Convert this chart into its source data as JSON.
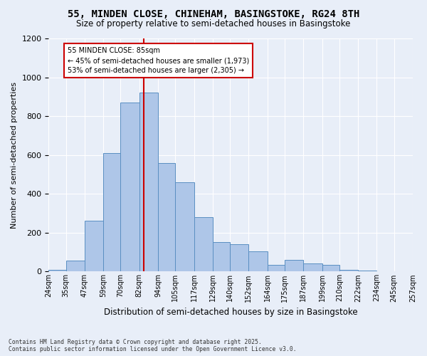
{
  "title1": "55, MINDEN CLOSE, CHINEHAM, BASINGSTOKE, RG24 8TH",
  "title2": "Size of property relative to semi-detached houses in Basingstoke",
  "xlabel": "Distribution of semi-detached houses by size in Basingstoke",
  "ylabel": "Number of semi-detached properties",
  "bin_labels": [
    "24sqm",
    "35sqm",
    "47sqm",
    "59sqm",
    "70sqm",
    "82sqm",
    "94sqm",
    "105sqm",
    "117sqm",
    "129sqm",
    "140sqm",
    "152sqm",
    "164sqm",
    "175sqm",
    "187sqm",
    "199sqm",
    "210sqm",
    "222sqm",
    "234sqm",
    "245sqm",
    "257sqm"
  ],
  "bin_edges": [
    24,
    35,
    47,
    59,
    70,
    82,
    94,
    105,
    117,
    129,
    140,
    152,
    164,
    175,
    187,
    199,
    210,
    222,
    234,
    245,
    257
  ],
  "values": [
    10,
    55,
    260,
    610,
    870,
    920,
    560,
    460,
    280,
    150,
    140,
    105,
    35,
    60,
    40,
    35,
    10,
    5,
    2,
    1
  ],
  "property_size": 85,
  "property_label": "55 MINDEN CLOSE: 85sqm",
  "pct_smaller": "45% of semi-detached houses are smaller (1,973)",
  "pct_larger": "53% of semi-detached houses are larger (2,305)",
  "bar_color": "#aec6e8",
  "bar_edge_color": "#5a8fc2",
  "vline_color": "#cc0000",
  "annotation_box_color": "#ffffff",
  "annotation_box_edge": "#cc0000",
  "background_color": "#e8eef8",
  "grid_color": "#ffffff",
  "ylim": [
    0,
    1200
  ],
  "yticks": [
    0,
    200,
    400,
    600,
    800,
    1000,
    1200
  ],
  "footer": "Contains HM Land Registry data © Crown copyright and database right 2025.\nContains public sector information licensed under the Open Government Licence v3.0."
}
